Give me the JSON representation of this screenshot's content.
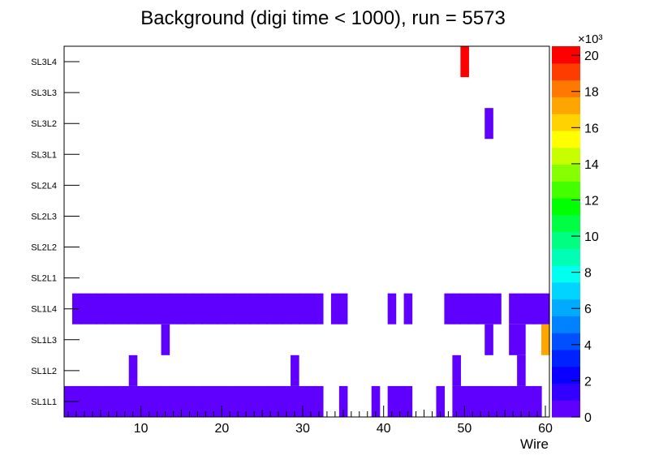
{
  "chart_data": {
    "type": "heatmap",
    "title": "Background (digi time < 1000), run = 5573",
    "xlabel": "Wire",
    "ylabel": "",
    "xlim": [
      0.5,
      60.5
    ],
    "x_ticks": [
      10,
      20,
      30,
      40,
      50,
      60
    ],
    "y_categories": [
      "SL1L1",
      "SL1L2",
      "SL1L3",
      "SL1L4",
      "SL2L1",
      "SL2L2",
      "SL2L3",
      "SL2L4",
      "SL3L1",
      "SL3L2",
      "SL3L3",
      "SL3L4"
    ],
    "z_multiplier_label": "×10³",
    "z_range": [
      0,
      20500
    ],
    "z_ticks": [
      0,
      2,
      4,
      6,
      8,
      10,
      12,
      14,
      16,
      18,
      20
    ],
    "palette": [
      "#5f00ff",
      "#3300ff",
      "#0a00ff",
      "#0022ff",
      "#0050ff",
      "#0082ff",
      "#00aaff",
      "#00d4ff",
      "#00ffee",
      "#00ffb4",
      "#00ff80",
      "#00ff44",
      "#00ff00",
      "#44ff00",
      "#88ff00",
      "#c8ff00",
      "#ffff00",
      "#ffd200",
      "#ffa500",
      "#ff7800",
      "#ff3c00",
      "#ff0000"
    ],
    "cells": [
      {
        "row": "SL1L1",
        "wires": [
          1,
          2,
          3,
          4,
          5,
          6,
          7,
          8,
          9,
          10,
          11,
          12,
          13,
          14,
          15,
          16,
          17,
          18,
          19,
          20,
          21,
          22,
          23,
          24,
          25,
          26,
          27,
          28,
          29,
          30,
          31,
          32,
          35,
          39,
          41,
          42,
          43,
          47,
          49,
          50,
          51,
          52,
          53,
          54,
          55,
          56,
          57,
          58,
          59
        ],
        "value": 500
      },
      {
        "row": "SL1L2",
        "wires": [
          9,
          29,
          49,
          57
        ],
        "value": 500
      },
      {
        "row": "SL1L3",
        "wires": [
          13,
          53,
          56,
          57
        ],
        "value": 500
      },
      {
        "row": "SL1L3",
        "wires": [
          60
        ],
        "value": 17500
      },
      {
        "row": "SL1L4",
        "wires": [
          2,
          3,
          4,
          5,
          6,
          7,
          8,
          9,
          10,
          11,
          12,
          13,
          14,
          15,
          16,
          17,
          18,
          19,
          20,
          21,
          22,
          23,
          24,
          25,
          26,
          27,
          28,
          29,
          30,
          31,
          32,
          34,
          35,
          41,
          43,
          48,
          49,
          50,
          51,
          52,
          53,
          54,
          56,
          57,
          58,
          59,
          60
        ],
        "value": 500
      },
      {
        "row": "SL3L2",
        "wires": [
          53
        ],
        "value": 500
      },
      {
        "row": "SL3L4",
        "wires": [
          50
        ],
        "value": 20500
      }
    ]
  }
}
